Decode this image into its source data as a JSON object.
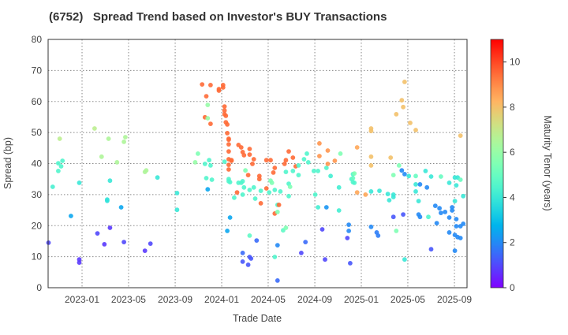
{
  "chart_data": {
    "type": "scatter",
    "title": "(6752)   Spread Trend based on Investor's BUY Transactions",
    "xlabel": "Trade Date",
    "ylabel": "Spread (bp)",
    "x_unit": "decimal year",
    "xlim": [
      2022.757,
      2025.757
    ],
    "ylim": [
      0,
      80
    ],
    "x_ticks": [
      {
        "value": 2023.0,
        "label": "2023-01"
      },
      {
        "value": 2023.333,
        "label": "2023-05"
      },
      {
        "value": 2023.667,
        "label": "2023-09"
      },
      {
        "value": 2024.0,
        "label": "2024-01"
      },
      {
        "value": 2024.333,
        "label": "2024-05"
      },
      {
        "value": 2024.667,
        "label": "2024-09"
      },
      {
        "value": 2025.0,
        "label": "2025-01"
      },
      {
        "value": 2025.333,
        "label": "2025-05"
      },
      {
        "value": 2025.667,
        "label": "2025-09"
      }
    ],
    "y_ticks": [
      "0",
      "10",
      "20",
      "30",
      "40",
      "50",
      "60",
      "70",
      "80"
    ],
    "grid": true,
    "colorbar": {
      "label": "Maturity Tenor (years)",
      "min": 0,
      "max": 11,
      "ticks": [
        "0",
        "2",
        "4",
        "6",
        "8",
        "10"
      ],
      "colormap": "rainbow"
    },
    "point_fields": [
      "date",
      "spread_bp",
      "maturity_tenor_years"
    ],
    "points": [
      [
        2022.76,
        14.5,
        1
      ],
      [
        2022.79,
        32.5,
        4.3
      ],
      [
        2022.83,
        40.1,
        4.5
      ],
      [
        2022.83,
        37.6,
        4.5
      ],
      [
        2022.84,
        48,
        6.8
      ],
      [
        2022.85,
        39.1,
        4.5
      ],
      [
        2022.86,
        40.9,
        4.5
      ],
      [
        2022.92,
        23.1,
        2.5
      ],
      [
        2022.98,
        9.1,
        0.8
      ],
      [
        2022.98,
        8.1,
        0.8
      ],
      [
        2022.98,
        33.8,
        4
      ],
      [
        2023.09,
        51.3,
        6.8
      ],
      [
        2023.11,
        17.5,
        1
      ],
      [
        2023.14,
        42.2,
        6.5
      ],
      [
        2023.16,
        14,
        0.8
      ],
      [
        2023.18,
        28.4,
        3.8
      ],
      [
        2023.18,
        28,
        3.8
      ],
      [
        2023.19,
        48,
        6.5
      ],
      [
        2023.2,
        19.3,
        0.8
      ],
      [
        2023.2,
        34.5,
        4
      ],
      [
        2023.25,
        40.4,
        6.5
      ],
      [
        2023.28,
        25.9,
        2.5
      ],
      [
        2023.3,
        14.7,
        1
      ],
      [
        2023.3,
        47,
        6.5
      ],
      [
        2023.31,
        48.5,
        6.5
      ],
      [
        2023.45,
        11.9,
        0.8
      ],
      [
        2023.45,
        37.3,
        6.5
      ],
      [
        2023.46,
        37.8,
        6.5
      ],
      [
        2023.49,
        14.2,
        1
      ],
      [
        2023.54,
        35.5,
        4
      ],
      [
        2023.68,
        30.5,
        4
      ],
      [
        2023.68,
        25.1,
        4
      ],
      [
        2023.81,
        40.4,
        6
      ],
      [
        2023.83,
        43.2,
        5.5
      ],
      [
        2023.86,
        65.5,
        9.5
      ],
      [
        2023.88,
        54.9,
        9.5
      ],
      [
        2023.88,
        39.9,
        4.5
      ],
      [
        2023.89,
        61.7,
        9.5
      ],
      [
        2023.89,
        35.3,
        4.5
      ],
      [
        2023.9,
        58.9,
        6
      ],
      [
        2023.9,
        54.6,
        6
      ],
      [
        2023.9,
        31.7,
        2.5
      ],
      [
        2023.91,
        41.1,
        4.5
      ],
      [
        2023.92,
        65.3,
        9.5
      ],
      [
        2023.92,
        52.8,
        9.5
      ],
      [
        2023.92,
        39.4,
        4.5
      ],
      [
        2023.93,
        34.8,
        4.5
      ],
      [
        2023.98,
        64,
        9.5
      ],
      [
        2023.98,
        63.5,
        9.5
      ],
      [
        2024.01,
        65.3,
        9.5
      ],
      [
        2024.01,
        64.5,
        9.5
      ],
      [
        2024.02,
        58.4,
        9.5
      ],
      [
        2024.02,
        57.1,
        9.5
      ],
      [
        2024.02,
        55.9,
        9.5
      ],
      [
        2024.02,
        40.6,
        4.5
      ],
      [
        2024.03,
        55.4,
        9.5
      ],
      [
        2024.03,
        53.3,
        9.5
      ],
      [
        2024.04,
        52.6,
        9.5
      ],
      [
        2024.04,
        49.8,
        9.5
      ],
      [
        2024.04,
        18.3,
        2.5
      ],
      [
        2024.05,
        43.9,
        9.5
      ],
      [
        2024.05,
        38.1,
        9.5
      ],
      [
        2024.05,
        35,
        4.5
      ],
      [
        2024.05,
        48,
        9.5
      ],
      [
        2024.05,
        46.2,
        9.5
      ],
      [
        2024.05,
        41.4,
        9.5
      ],
      [
        2024.05,
        39.6,
        9.5
      ],
      [
        2024.05,
        47.7,
        9.5
      ],
      [
        2024.05,
        34.3,
        4.5
      ],
      [
        2024.06,
        34,
        4.5
      ],
      [
        2024.06,
        22.6,
        2.5
      ],
      [
        2024.07,
        41.1,
        9.5
      ],
      [
        2024.07,
        40.9,
        9.5
      ],
      [
        2024.09,
        29,
        4.5
      ],
      [
        2024.11,
        30.7,
        9.5
      ],
      [
        2024.12,
        46,
        9.5
      ],
      [
        2024.12,
        33.8,
        4.5
      ],
      [
        2024.14,
        45.2,
        9.5
      ],
      [
        2024.14,
        33.8,
        4.5
      ],
      [
        2024.15,
        30,
        4.5
      ],
      [
        2024.15,
        11.2,
        1.5
      ],
      [
        2024.15,
        43.7,
        9.5
      ],
      [
        2024.15,
        34.3,
        4.5
      ],
      [
        2024.15,
        8.4,
        1.2
      ],
      [
        2024.16,
        42.7,
        9.5
      ],
      [
        2024.16,
        32.3,
        4.5
      ],
      [
        2024.17,
        37.8,
        5.5
      ],
      [
        2024.19,
        36.3,
        9.5
      ],
      [
        2024.19,
        7.4,
        1.2
      ],
      [
        2024.2,
        44.7,
        9.5
      ],
      [
        2024.2,
        42.9,
        9.5
      ],
      [
        2024.2,
        31.5,
        4.5
      ],
      [
        2024.2,
        16.8,
        4.8
      ],
      [
        2024.2,
        9.9,
        1.2
      ],
      [
        2024.21,
        9.4,
        1.2
      ],
      [
        2024.22,
        39.9,
        9.5
      ],
      [
        2024.23,
        41.4,
        9.5
      ],
      [
        2024.23,
        32.3,
        4.5
      ],
      [
        2024.24,
        28.7,
        4.5
      ],
      [
        2024.25,
        15.2,
        1.5
      ],
      [
        2024.27,
        36,
        9.5
      ],
      [
        2024.27,
        35,
        9.5
      ],
      [
        2024.28,
        31.2,
        4.5
      ],
      [
        2024.28,
        27.2,
        9.5
      ],
      [
        2024.32,
        41.1,
        9.5
      ],
      [
        2024.32,
        32,
        9.5
      ],
      [
        2024.34,
        30.7,
        4.5
      ],
      [
        2024.35,
        41.1,
        9.5
      ],
      [
        2024.35,
        34.5,
        5.5
      ],
      [
        2024.36,
        33.8,
        5.5
      ],
      [
        2024.37,
        37.1,
        9.5
      ],
      [
        2024.38,
        9.9,
        4.5
      ],
      [
        2024.38,
        38.6,
        9.5
      ],
      [
        2024.38,
        23.9,
        9.5
      ],
      [
        2024.38,
        31.5,
        4.5
      ],
      [
        2024.4,
        26.7,
        4.5
      ],
      [
        2024.4,
        24.4,
        5.5
      ],
      [
        2024.4,
        2.3,
        1.5
      ],
      [
        2024.4,
        13.7,
        2
      ],
      [
        2024.41,
        26.7,
        9.5
      ],
      [
        2024.42,
        31,
        4.5
      ],
      [
        2024.44,
        18.5,
        4.8
      ],
      [
        2024.45,
        39.9,
        9.5
      ],
      [
        2024.46,
        41.1,
        9.5
      ],
      [
        2024.46,
        37.3,
        4.5
      ],
      [
        2024.46,
        19.3,
        5.5
      ],
      [
        2024.48,
        43.9,
        9.5
      ],
      [
        2024.48,
        33.5,
        4.5
      ],
      [
        2024.48,
        29.5,
        4.5
      ],
      [
        2024.49,
        32.5,
        5.5
      ],
      [
        2024.51,
        41.9,
        9.5
      ],
      [
        2024.51,
        37.6,
        4.5
      ],
      [
        2024.53,
        39.1,
        9.5
      ],
      [
        2024.55,
        36.3,
        4.5
      ],
      [
        2024.55,
        39.4,
        4.5
      ],
      [
        2024.57,
        11.2,
        1
      ],
      [
        2024.59,
        41.4,
        4.5
      ],
      [
        2024.6,
        14.7,
        1.5
      ],
      [
        2024.61,
        43.2,
        4.5
      ],
      [
        2024.62,
        40.4,
        4.5
      ],
      [
        2024.66,
        37.6,
        4.5
      ],
      [
        2024.67,
        30,
        4.5
      ],
      [
        2024.69,
        37.6,
        4.5
      ],
      [
        2024.69,
        25.9,
        4.2
      ],
      [
        2024.7,
        46.5,
        8.8
      ],
      [
        2024.7,
        42.4,
        8.8
      ],
      [
        2024.72,
        18.8,
        1
      ],
      [
        2024.74,
        9.1,
        1
      ],
      [
        2024.75,
        38.6,
        4.5
      ],
      [
        2024.75,
        25.9,
        2.2
      ],
      [
        2024.76,
        44.2,
        8.8
      ],
      [
        2024.76,
        39.9,
        8.8
      ],
      [
        2024.78,
        36,
        4.2
      ],
      [
        2024.81,
        40.9,
        8.8
      ],
      [
        2024.84,
        32.3,
        4.2
      ],
      [
        2024.84,
        24.9,
        4.2
      ],
      [
        2024.85,
        43.2,
        5.5
      ],
      [
        2024.9,
        16,
        1
      ],
      [
        2024.91,
        20.3,
        2
      ],
      [
        2024.91,
        18.3,
        2
      ],
      [
        2024.92,
        7.9,
        1.2
      ],
      [
        2024.93,
        35,
        4.5
      ],
      [
        2024.94,
        35.3,
        5
      ],
      [
        2024.94,
        34,
        4.5
      ],
      [
        2024.94,
        36.6,
        4.5
      ],
      [
        2024.95,
        36.8,
        5.5
      ],
      [
        2024.95,
        33.8,
        4.5
      ],
      [
        2024.97,
        45.2,
        8.5
      ],
      [
        2024.97,
        30.7,
        8.5
      ],
      [
        2025.03,
        30,
        8.5
      ],
      [
        2025.07,
        51.3,
        8
      ],
      [
        2025.07,
        50.5,
        8
      ],
      [
        2025.07,
        42.2,
        8
      ],
      [
        2025.07,
        39.4,
        8
      ],
      [
        2025.07,
        31,
        4
      ],
      [
        2025.07,
        19.6,
        2
      ],
      [
        2025.11,
        17.8,
        1.8
      ],
      [
        2025.12,
        16.8,
        1.8
      ],
      [
        2025.13,
        31.2,
        4
      ],
      [
        2025.19,
        30.2,
        4
      ],
      [
        2025.2,
        28.2,
        4
      ],
      [
        2025.21,
        41.9,
        8
      ],
      [
        2025.23,
        30,
        4
      ],
      [
        2025.23,
        29.2,
        4
      ],
      [
        2025.23,
        36.3,
        5.5
      ],
      [
        2025.23,
        22.8,
        1.2
      ],
      [
        2025.25,
        55.9,
        8
      ],
      [
        2025.25,
        18.3,
        5.5
      ],
      [
        2025.27,
        39.4,
        5.5
      ],
      [
        2025.29,
        37.8,
        2
      ],
      [
        2025.29,
        60.4,
        8
      ],
      [
        2025.3,
        58.2,
        8
      ],
      [
        2025.3,
        23.6,
        1.2
      ],
      [
        2025.31,
        36.6,
        2
      ],
      [
        2025.31,
        66.3,
        8
      ],
      [
        2025.31,
        9.1,
        4
      ],
      [
        2025.34,
        36,
        4
      ],
      [
        2025.35,
        53.1,
        8
      ],
      [
        2025.39,
        50.8,
        8
      ],
      [
        2025.39,
        36,
        5
      ],
      [
        2025.39,
        33.3,
        4
      ],
      [
        2025.39,
        31,
        4
      ],
      [
        2025.41,
        27.9,
        4
      ],
      [
        2025.41,
        23.6,
        2
      ],
      [
        2025.42,
        33.3,
        2
      ],
      [
        2025.42,
        22.8,
        2
      ],
      [
        2025.46,
        37.6,
        4
      ],
      [
        2025.47,
        32.3,
        2
      ],
      [
        2025.48,
        22.8,
        4.5
      ],
      [
        2025.5,
        35.8,
        4
      ],
      [
        2025.5,
        12.4,
        1.2
      ],
      [
        2025.53,
        26.4,
        2
      ],
      [
        2025.54,
        20.8,
        2
      ],
      [
        2025.56,
        25.6,
        2
      ],
      [
        2025.57,
        35.8,
        5
      ],
      [
        2025.57,
        24.1,
        2
      ],
      [
        2025.6,
        24.4,
        2
      ],
      [
        2025.63,
        33.8,
        4
      ],
      [
        2025.63,
        22.6,
        2
      ],
      [
        2025.63,
        17.8,
        2
      ],
      [
        2025.65,
        25.9,
        2
      ],
      [
        2025.65,
        24.9,
        2
      ],
      [
        2025.67,
        35.5,
        4
      ],
      [
        2025.67,
        27.9,
        4
      ],
      [
        2025.67,
        17,
        2
      ],
      [
        2025.67,
        11.9,
        2
      ],
      [
        2025.68,
        33,
        4
      ],
      [
        2025.68,
        22.1,
        2
      ],
      [
        2025.68,
        19.8,
        2
      ],
      [
        2025.69,
        35.5,
        4
      ],
      [
        2025.69,
        16.3,
        2
      ],
      [
        2025.71,
        49,
        8
      ],
      [
        2025.71,
        34.8,
        5
      ],
      [
        2025.71,
        19.8,
        2
      ],
      [
        2025.71,
        16,
        2
      ],
      [
        2025.73,
        29.5,
        4
      ],
      [
        2025.73,
        20.6,
        2
      ]
    ]
  }
}
